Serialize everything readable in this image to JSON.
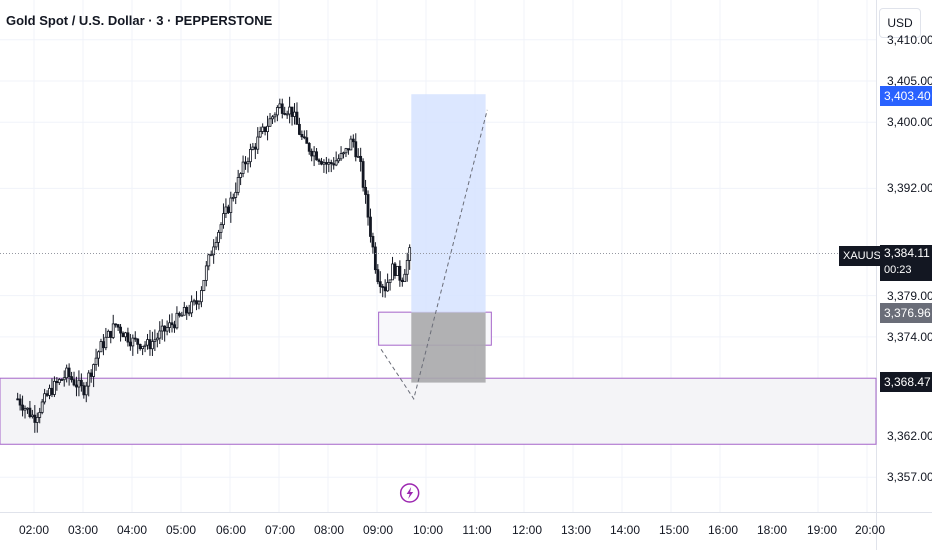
{
  "header": {
    "title": "Gold Spot / U.S. Dollar · 3 · PEPPERSTONE",
    "currency_button": "USD"
  },
  "price_axis": {
    "ticks": [
      {
        "label": "3,410.00",
        "value": 3410.0
      },
      {
        "label": "3,405.00",
        "value": 3405.0
      },
      {
        "label": "3,400.00",
        "value": 3400.0
      },
      {
        "label": "3,392.00",
        "value": 3392.0
      },
      {
        "label": "3,379.00",
        "value": 3379.0
      },
      {
        "label": "3,374.00",
        "value": 3374.0
      },
      {
        "label": "3,362.00",
        "value": 3362.0
      },
      {
        "label": "3,357.00",
        "value": 3357.0
      }
    ],
    "badges": {
      "target": "3,403.40",
      "entry": "3,376.96",
      "stop": "3,368.47",
      "last_price": "3,384.11",
      "countdown": "00:23",
      "symbol": "XAUUSD"
    }
  },
  "time_axis": {
    "ticks": [
      "02:00",
      "03:00",
      "04:00",
      "05:00",
      "06:00",
      "07:00",
      "08:00",
      "09:00",
      "10:00",
      "11:00",
      "12:00",
      "13:00",
      "14:00",
      "15:00",
      "16:00",
      "18:00",
      "19:00",
      "20:00"
    ]
  },
  "colors": {
    "up": "#131722",
    "down": "#131722",
    "target_zone": "#d6e3ff",
    "stop_zone": "#a9a9ab",
    "zone_outline": "#a565c9",
    "grid": "#f0f3fa",
    "last_price_line": "#9598a1"
  },
  "icons": {
    "event_marker": "lightning-icon"
  },
  "chart_data": {
    "type": "candlestick",
    "symbol": "XAUUSD",
    "interval": "3",
    "x_labels": [
      "02:00",
      "03:00",
      "04:00",
      "05:00",
      "06:00",
      "07:00",
      "08:00",
      "09:00",
      "10:00",
      "11:00",
      "12:00",
      "13:00",
      "14:00",
      "15:00",
      "16:00",
      "18:00",
      "19:00",
      "20:00"
    ],
    "y_range": [
      3354,
      3412
    ],
    "last_price": 3384.11,
    "waypoints_close": [
      [
        "01:40",
        3366.5
      ],
      [
        "02:00",
        3364.2
      ],
      [
        "02:20",
        3367.5
      ],
      [
        "02:40",
        3369.5
      ],
      [
        "03:00",
        3367.5
      ],
      [
        "03:20",
        3372.5
      ],
      [
        "03:40",
        3375.5
      ],
      [
        "04:00",
        3373.5
      ],
      [
        "04:20",
        3373.0
      ],
      [
        "04:40",
        3374.8
      ],
      [
        "05:00",
        3376.5
      ],
      [
        "05:20",
        3378.2
      ],
      [
        "05:40",
        3385.5
      ],
      [
        "06:00",
        3390.2
      ],
      [
        "06:20",
        3395.5
      ],
      [
        "06:40",
        3398.8
      ],
      [
        "07:00",
        3402.0
      ],
      [
        "07:15",
        3401.5
      ],
      [
        "07:30",
        3397.5
      ],
      [
        "07:45",
        3396.2
      ],
      [
        "08:00",
        3394.8
      ],
      [
        "08:20",
        3396.0
      ],
      [
        "08:30",
        3398.0
      ],
      [
        "08:40",
        3394.5
      ],
      [
        "08:50",
        3388.0
      ],
      [
        "09:00",
        3381.5
      ],
      [
        "09:10",
        3380.0
      ],
      [
        "09:20",
        3382.5
      ],
      [
        "09:30",
        3381.0
      ],
      [
        "09:40",
        3384.1
      ]
    ],
    "position": {
      "type": "long",
      "entry": 3376.96,
      "target": 3403.4,
      "stop": 3368.47
    },
    "zones": [
      {
        "name": "demand-zone",
        "from": 3361.0,
        "to": 3369.0
      },
      {
        "name": "entry-zone",
        "from": 3373.0,
        "to": 3377.0
      }
    ],
    "grid": true
  }
}
